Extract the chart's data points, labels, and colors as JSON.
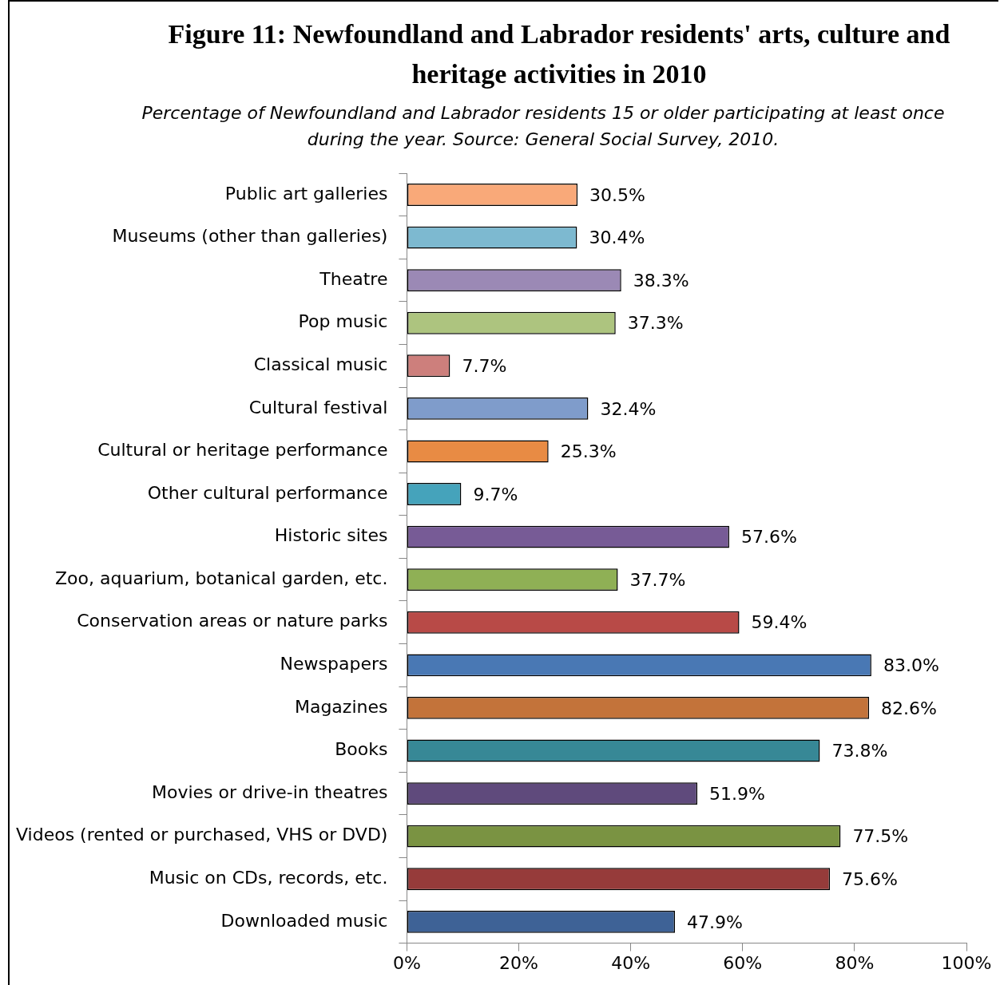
{
  "chart_data": {
    "type": "bar",
    "orientation": "horizontal",
    "title": "Figure 11: Newfoundland and Labrador residents' arts, culture and heritage activities in 2010",
    "subtitle": "Percentage of Newfoundland and Labrador residents 15 or older participating at least once during the year. Source: General Social Survey, 2010.",
    "categories": [
      "Public art galleries",
      "Museums (other than galleries)",
      "Theatre",
      "Pop music",
      "Classical music",
      "Cultural festival",
      "Cultural or heritage performance",
      "Other cultural performance",
      "Historic sites",
      "Zoo, aquarium, botanical garden, etc.",
      "Conservation areas or nature parks",
      "Newspapers",
      "Magazines",
      "Books",
      "Movies or drive-in theatres",
      "Videos (rented or purchased, VHS or DVD)",
      "Music on CDs, records, etc.",
      "Downloaded music"
    ],
    "values": [
      30.5,
      30.4,
      38.3,
      37.3,
      7.7,
      32.4,
      25.3,
      9.7,
      57.6,
      37.7,
      59.4,
      83.0,
      82.6,
      73.8,
      51.9,
      77.5,
      75.6,
      47.9
    ],
    "value_labels": [
      "30.5%",
      "30.4%",
      "38.3%",
      "37.3%",
      "7.7%",
      "32.4%",
      "25.3%",
      "9.7%",
      "57.6%",
      "37.7%",
      "59.4%",
      "83.0%",
      "82.6%",
      "73.8%",
      "51.9%",
      "77.5%",
      "75.6%",
      "47.9%"
    ],
    "colors": [
      "#f9a979",
      "#7db9d0",
      "#9b89b5",
      "#adc47f",
      "#cd7f7c",
      "#7f9ccb",
      "#e88b44",
      "#45a3bb",
      "#775b96",
      "#8fb055",
      "#b84a47",
      "#4978b4",
      "#c3733a",
      "#378896",
      "#5f4a7c",
      "#7a9342",
      "#963b3a",
      "#3e6296"
    ],
    "xlim": [
      0,
      100
    ],
    "xticks": [
      {
        "value": 0,
        "label": "0%"
      },
      {
        "value": 20,
        "label": "20%"
      },
      {
        "value": 40,
        "label": "40%"
      },
      {
        "value": 60,
        "label": "60%"
      },
      {
        "value": 80,
        "label": "80%"
      },
      {
        "value": 100,
        "label": "100%"
      }
    ],
    "grid": false,
    "legend": false
  }
}
